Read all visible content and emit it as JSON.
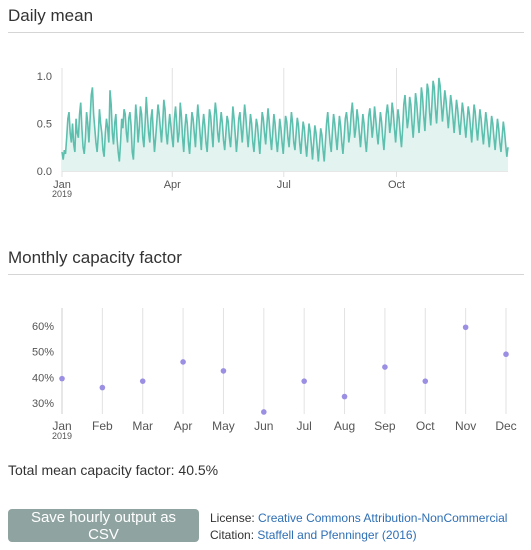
{
  "daily": {
    "title": "Daily mean"
  },
  "monthly": {
    "title": "Monthly capacity factor"
  },
  "total": {
    "label": "Total mean capacity factor: 40.5%"
  },
  "save_button": {
    "label": "Save hourly output as CSV"
  },
  "license": {
    "label": "License:",
    "link_text": "Creative Commons Attribution-NonCommercial"
  },
  "citation": {
    "label": "Citation:",
    "link_text": "Staffell and Pfenninger (2016)"
  },
  "colors": {
    "line": "#5dbfae",
    "area": "#e3f4f0",
    "dot": "#9a8fe3",
    "button": "#8fa3a1",
    "link": "#2f6fb5"
  },
  "chart_data": [
    {
      "type": "area",
      "title": "",
      "x_ticks": [
        "Jan",
        "Apr",
        "Jul",
        "Oct"
      ],
      "x_tick_sublabel": "2019",
      "y_ticks": [
        "0.0",
        "0.5",
        "1.0"
      ],
      "ylim": [
        0,
        1.0
      ],
      "x_start": "2019-01-01",
      "x_end": "2019-12-31",
      "values": [
        0.2,
        0.12,
        0.22,
        0.18,
        0.35,
        0.55,
        0.62,
        0.4,
        0.3,
        0.5,
        0.28,
        0.2,
        0.55,
        0.4,
        0.35,
        0.6,
        0.72,
        0.45,
        0.25,
        0.18,
        0.35,
        0.62,
        0.5,
        0.3,
        0.55,
        0.8,
        0.88,
        0.6,
        0.45,
        0.3,
        0.2,
        0.38,
        0.65,
        0.5,
        0.4,
        0.22,
        0.15,
        0.4,
        0.55,
        0.45,
        0.3,
        0.85,
        0.7,
        0.4,
        0.28,
        0.5,
        0.6,
        0.35,
        0.2,
        0.1,
        0.3,
        0.55,
        0.45,
        0.65,
        0.6,
        0.4,
        0.3,
        0.55,
        0.62,
        0.48,
        0.2,
        0.12,
        0.4,
        0.7,
        0.55,
        0.3,
        0.45,
        0.68,
        0.6,
        0.35,
        0.25,
        0.5,
        0.78,
        0.58,
        0.4,
        0.3,
        0.55,
        0.65,
        0.4,
        0.2,
        0.35,
        0.52,
        0.7,
        0.6,
        0.45,
        0.3,
        0.5,
        0.75,
        0.65,
        0.4,
        0.28,
        0.45,
        0.6,
        0.48,
        0.35,
        0.25,
        0.55,
        0.68,
        0.5,
        0.3,
        0.4,
        0.72,
        0.58,
        0.35,
        0.2,
        0.45,
        0.6,
        0.5,
        0.3,
        0.18,
        0.4,
        0.62,
        0.55,
        0.4,
        0.25,
        0.5,
        0.7,
        0.55,
        0.38,
        0.22,
        0.45,
        0.6,
        0.48,
        0.3,
        0.2,
        0.42,
        0.65,
        0.58,
        0.4,
        0.25,
        0.55,
        0.72,
        0.6,
        0.4,
        0.3,
        0.48,
        0.62,
        0.5,
        0.32,
        0.22,
        0.4,
        0.58,
        0.52,
        0.35,
        0.25,
        0.45,
        0.68,
        0.55,
        0.38,
        0.2,
        0.35,
        0.55,
        0.62,
        0.45,
        0.3,
        0.5,
        0.7,
        0.58,
        0.4,
        0.25,
        0.42,
        0.6,
        0.5,
        0.3,
        0.2,
        0.38,
        0.55,
        0.48,
        0.32,
        0.18,
        0.4,
        0.62,
        0.55,
        0.4,
        0.28,
        0.48,
        0.66,
        0.52,
        0.35,
        0.22,
        0.4,
        0.6,
        0.5,
        0.32,
        0.2,
        0.35,
        0.55,
        0.45,
        0.3,
        0.18,
        0.38,
        0.58,
        0.52,
        0.35,
        0.25,
        0.45,
        0.62,
        0.5,
        0.3,
        0.22,
        0.4,
        0.56,
        0.48,
        0.3,
        0.18,
        0.36,
        0.52,
        0.45,
        0.28,
        0.15,
        0.32,
        0.5,
        0.42,
        0.28,
        0.12,
        0.3,
        0.48,
        0.4,
        0.25,
        0.1,
        0.28,
        0.45,
        0.38,
        0.22,
        0.1,
        0.3,
        0.5,
        0.62,
        0.45,
        0.3,
        0.2,
        0.42,
        0.6,
        0.5,
        0.35,
        0.22,
        0.4,
        0.58,
        0.48,
        0.3,
        0.18,
        0.35,
        0.55,
        0.62,
        0.5,
        0.3,
        0.4,
        0.6,
        0.72,
        0.55,
        0.35,
        0.45,
        0.65,
        0.55,
        0.4,
        0.25,
        0.42,
        0.6,
        0.5,
        0.32,
        0.2,
        0.38,
        0.58,
        0.66,
        0.52,
        0.35,
        0.48,
        0.68,
        0.55,
        0.4,
        0.28,
        0.45,
        0.62,
        0.52,
        0.35,
        0.22,
        0.4,
        0.6,
        0.7,
        0.58,
        0.4,
        0.5,
        0.72,
        0.62,
        0.45,
        0.3,
        0.48,
        0.65,
        0.55,
        0.38,
        0.25,
        0.45,
        0.7,
        0.8,
        0.62,
        0.45,
        0.55,
        0.78,
        0.7,
        0.5,
        0.35,
        0.55,
        0.82,
        0.72,
        0.55,
        0.4,
        0.6,
        0.88,
        0.78,
        0.58,
        0.42,
        0.65,
        0.92,
        0.85,
        0.62,
        0.48,
        0.7,
        0.95,
        0.88,
        0.65,
        0.5,
        0.72,
        0.98,
        0.9,
        0.7,
        0.52,
        0.68,
        0.85,
        0.75,
        0.6,
        0.45,
        0.62,
        0.8,
        0.7,
        0.55,
        0.4,
        0.58,
        0.75,
        0.65,
        0.5,
        0.38,
        0.55,
        0.72,
        0.62,
        0.48,
        0.35,
        0.52,
        0.68,
        0.6,
        0.45,
        0.3,
        0.5,
        0.7,
        0.62,
        0.45,
        0.32,
        0.48,
        0.65,
        0.55,
        0.4,
        0.28,
        0.45,
        0.62,
        0.52,
        0.38,
        0.25,
        0.4,
        0.58,
        0.5,
        0.35,
        0.22,
        0.38,
        0.55,
        0.45,
        0.3,
        0.2,
        0.36,
        0.52,
        0.42,
        0.28,
        0.15,
        0.25
      ]
    },
    {
      "type": "scatter",
      "title": "",
      "categories": [
        "Jan",
        "Feb",
        "Mar",
        "Apr",
        "May",
        "Jun",
        "Jul",
        "Aug",
        "Sep",
        "Oct",
        "Nov",
        "Dec"
      ],
      "x_tick_sublabel": "2019",
      "values": [
        39.5,
        36.0,
        38.5,
        46.0,
        42.5,
        26.5,
        38.5,
        32.5,
        44.0,
        38.5,
        59.5,
        49.0
      ],
      "y_ticks": [
        "30%",
        "40%",
        "50%",
        "60%"
      ],
      "ylim": [
        25,
        65
      ]
    }
  ]
}
